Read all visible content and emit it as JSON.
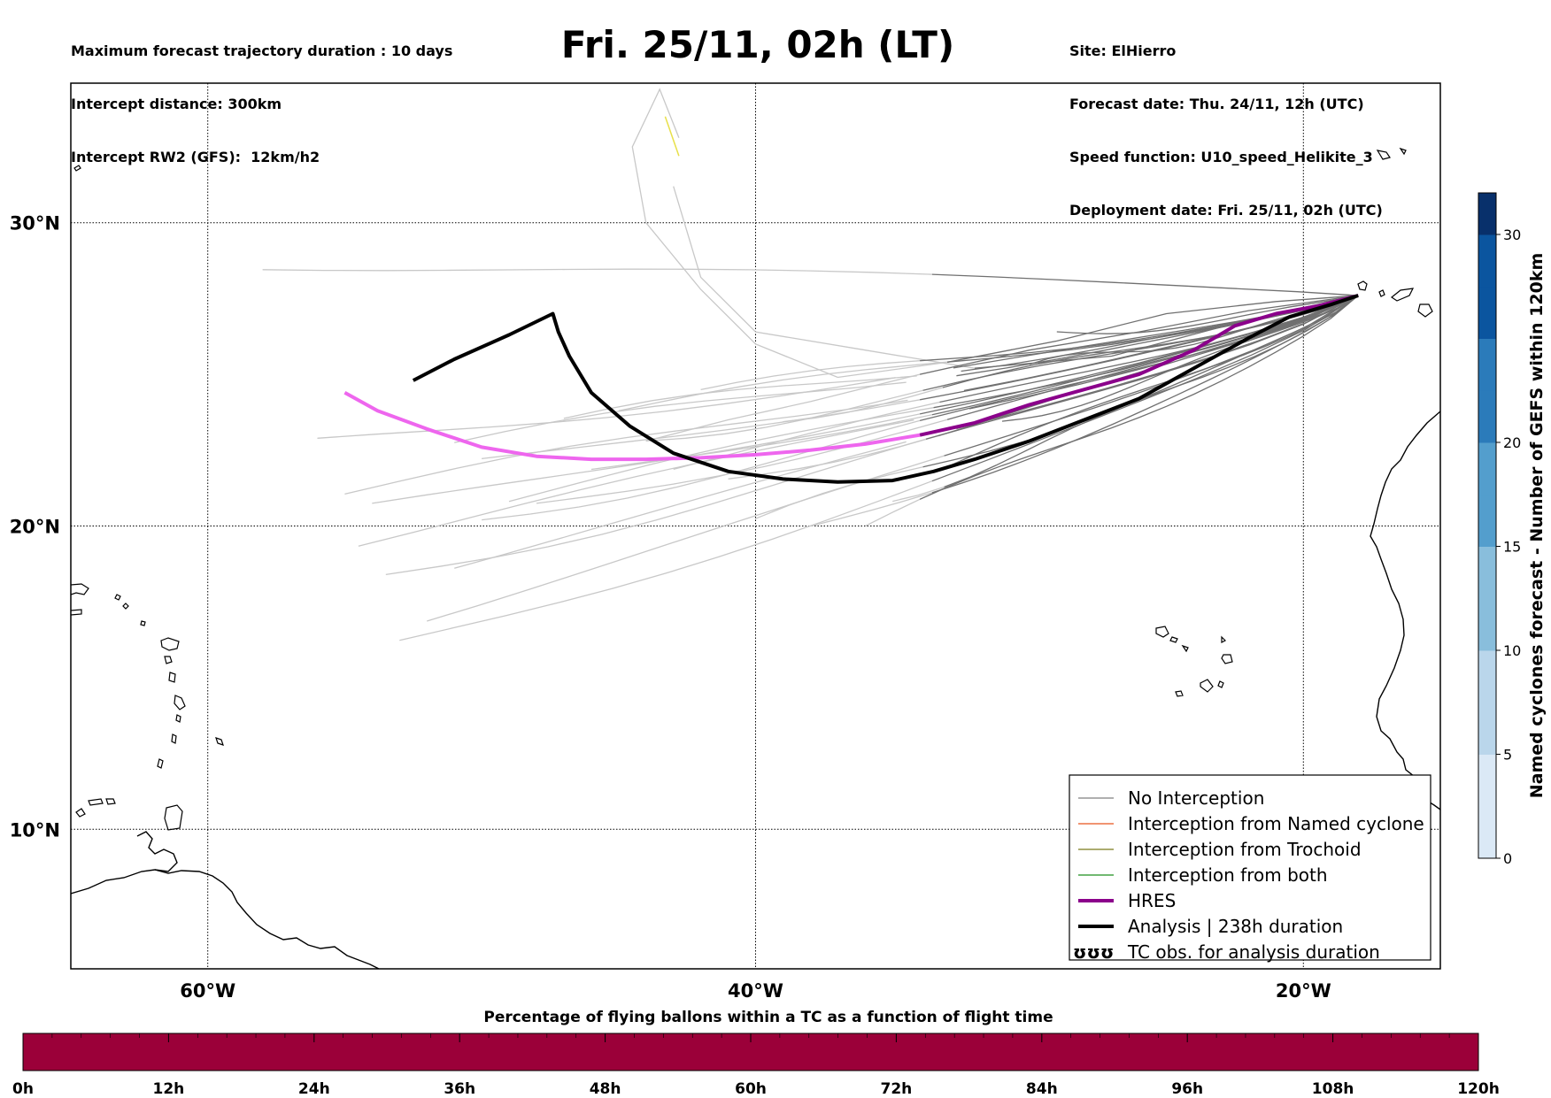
{
  "header": {
    "left": [
      "Maximum forecast trajectory duration : 10 days",
      "Intercept distance: 300km",
      "Intercept RW2 (GFS):  12km/h2"
    ],
    "title": "Fri. 25/11, 02h (LT)",
    "right": [
      "Site: ElHierro",
      "Forecast date: Thu. 24/11, 12h (UTC)",
      "Speed function: U10_speed_Helikite_3",
      "Deployment date: Fri. 25/11, 02h (UTC)"
    ]
  },
  "map": {
    "extent": {
      "lon_min": -65,
      "lon_max": -15,
      "lat_min": 5.4,
      "lat_max": 34.6
    },
    "lon_ticks": [
      {
        "lon": -60,
        "label": "60°W"
      },
      {
        "lon": -40,
        "label": "40°W"
      },
      {
        "lon": -20,
        "label": "20°W"
      }
    ],
    "lat_ticks": [
      {
        "lat": 30,
        "label": "30°N"
      },
      {
        "lat": 20,
        "label": "20°N"
      },
      {
        "lat": 10,
        "label": "10°N"
      }
    ],
    "grid": "dotted"
  },
  "trajectories": {
    "launch_site": {
      "lon": -18.0,
      "lat": 27.6
    },
    "hres": [
      [
        -18.0,
        27.6
      ],
      [
        -19.5,
        27.25
      ],
      [
        -21.0,
        27.0
      ],
      [
        -22.5,
        26.6
      ],
      [
        -24.0,
        25.8
      ],
      [
        -26.0,
        25.0
      ],
      [
        -28.0,
        24.5
      ],
      [
        -30.0,
        24.0
      ],
      [
        -32.0,
        23.4
      ],
      [
        -34.0,
        23.0
      ],
      [
        -36.0,
        22.7
      ],
      [
        -38.0,
        22.5
      ],
      [
        -40.0,
        22.35
      ],
      [
        -42.0,
        22.25
      ],
      [
        -44.0,
        22.2
      ],
      [
        -46.0,
        22.2
      ],
      [
        -48.0,
        22.3
      ],
      [
        -50.0,
        22.6
      ],
      [
        -52.0,
        23.2
      ],
      [
        -53.8,
        23.8
      ],
      [
        -55.0,
        24.4
      ]
    ],
    "hres_dark_until_lon": -34.5,
    "analysis": [
      [
        -18.0,
        27.6
      ],
      [
        -19.0,
        27.3
      ],
      [
        -20.5,
        26.9
      ],
      [
        -22.0,
        26.2
      ],
      [
        -24.0,
        25.2
      ],
      [
        -26.0,
        24.2
      ],
      [
        -28.0,
        23.5
      ],
      [
        -30.0,
        22.8
      ],
      [
        -32.0,
        22.2
      ],
      [
        -33.5,
        21.8
      ],
      [
        -35.0,
        21.5
      ],
      [
        -37.0,
        21.45
      ],
      [
        -39.0,
        21.55
      ],
      [
        -41.0,
        21.8
      ],
      [
        -43.0,
        22.4
      ],
      [
        -44.6,
        23.3
      ],
      [
        -46.0,
        24.4
      ],
      [
        -46.8,
        25.6
      ],
      [
        -47.2,
        26.4
      ],
      [
        -47.4,
        27.0
      ],
      [
        -49.0,
        26.3
      ],
      [
        -51.0,
        25.5
      ],
      [
        -52.5,
        24.8
      ]
    ],
    "gefs_endpoints": [
      [
        -58,
        28.8
      ],
      [
        -56,
        22.6
      ],
      [
        -55,
        21.2
      ],
      [
        -54,
        20.4
      ],
      [
        -54.5,
        19.6
      ],
      [
        -53.5,
        18.3
      ],
      [
        -52,
        17.2
      ],
      [
        -53,
        16.0
      ],
      [
        -51,
        22.8
      ],
      [
        -50,
        21.9
      ],
      [
        -49,
        21.0
      ],
      [
        -50,
        20.2
      ],
      [
        -51,
        18.9
      ],
      [
        -48,
        20.6
      ],
      [
        -47,
        23.5
      ],
      [
        -46,
        21.6
      ],
      [
        -45,
        23.9
      ],
      [
        -44,
        22.9
      ],
      [
        -43,
        22.1
      ],
      [
        -41,
        21.5
      ],
      [
        -40,
        20.1
      ],
      [
        -38,
        19.8
      ],
      [
        -36,
        20.0
      ],
      [
        -35,
        21.0
      ],
      [
        -33,
        22.1
      ],
      [
        -31,
        23.5
      ],
      [
        -30,
        25.1
      ],
      [
        -29,
        26.3
      ],
      [
        -42,
        24.4
      ],
      [
        -39,
        23.7
      ]
    ],
    "yellow_segment": [
      [
        -42.8,
        32.2
      ],
      [
        -43.3,
        33.5
      ]
    ],
    "gefs_northern": [
      [
        [
          -18.0,
          27.6
        ],
        [
          -21,
          27.4
        ],
        [
          -25,
          27.0
        ],
        [
          -29,
          26.1
        ],
        [
          -33,
          25.4
        ],
        [
          -37,
          24.9
        ],
        [
          -40,
          26.0
        ],
        [
          -42,
          27.8
        ],
        [
          -44,
          30.0
        ],
        [
          -44.5,
          32.5
        ],
        [
          -43.5,
          34.4
        ],
        [
          -42.8,
          32.8
        ]
      ],
      [
        [
          -18.0,
          27.6
        ],
        [
          -22,
          27.1
        ],
        [
          -26,
          26.4
        ],
        [
          -30,
          25.8
        ],
        [
          -34,
          25.0
        ],
        [
          -38,
          24.1
        ],
        [
          -41,
          23.5
        ],
        [
          -44,
          22.8
        ]
      ],
      [
        [
          -18.0,
          27.6
        ],
        [
          -22,
          26.8
        ],
        [
          -27,
          25.6
        ],
        [
          -32,
          25.2
        ],
        [
          -36,
          25.8
        ],
        [
          -40,
          26.4
        ],
        [
          -42,
          28.2
        ],
        [
          -43,
          31.2
        ]
      ]
    ]
  },
  "legend": {
    "items": [
      {
        "label": "No Interception",
        "color": "#7f7f7f",
        "width": 1.2
      },
      {
        "label": "Interception from Named cyclone",
        "color": "#e8541c",
        "width": 1.2
      },
      {
        "label": "Interception from Trochoid",
        "color": "#7a7a1a",
        "width": 1.2
      },
      {
        "label": "Interception from both",
        "color": "#1f8f1f",
        "width": 1.2
      },
      {
        "label": "HRES",
        "color": "#8b008b",
        "width": 4
      },
      {
        "label": "Analysis | 238h duration",
        "color": "#000000",
        "width": 4
      },
      {
        "label": "TC obs. for analysis duration",
        "color": "#000000",
        "width": 0,
        "marker": "ʊʊʊ"
      }
    ]
  },
  "colorbar": {
    "title": "Named cyclones forecast - Number of GEFS within 120km",
    "ticks": [
      0,
      5,
      10,
      15,
      20,
      30
    ],
    "max": 32,
    "colors": [
      "#dbe9f6",
      "#bad6eb",
      "#89bedc",
      "#539ecd",
      "#2b7bba",
      "#0b559f",
      "#08306b"
    ]
  },
  "timeline": {
    "title": "Percentage of flying ballons within a TC as a function of flight time",
    "ticks": [
      "0h",
      "12h",
      "24h",
      "36h",
      "48h",
      "60h",
      "72h",
      "84h",
      "96h",
      "108h",
      "120h"
    ],
    "color": "#9b0039"
  }
}
